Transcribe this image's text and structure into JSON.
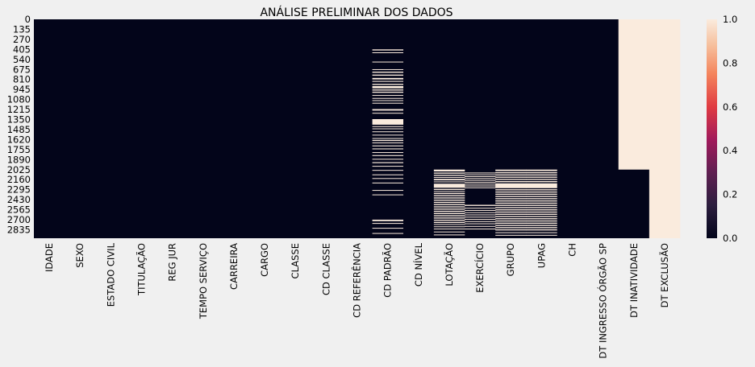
{
  "chart_data": {
    "type": "heatmap",
    "title": "ANÁLISE PRELIMINAR DOS DADOS",
    "xlabel": "",
    "ylabel": "",
    "columns": [
      "IDADE",
      "SEXO",
      "ESTADO CIVIL",
      "TITULAÇÃO",
      "REG JUR",
      "TEMPO SERVIÇO",
      "CARREIRA",
      "CARGO",
      "CLASSE",
      "CD CLASSE",
      "CD REFERÊNCIA",
      "CD PADRÃO",
      "CD NÍVEL",
      "LOTAÇÃO",
      "EXERCÍCIO",
      "GRUPO",
      "UPAG",
      "CH",
      "DT INGRESSO ÓRGÃO SP",
      "DT INATIVIDADE",
      "DT EXCLUSÃO"
    ],
    "row_ticks": [
      "0",
      "135",
      "270",
      "405",
      "540",
      "675",
      "810",
      "945",
      "1080",
      "1215",
      "1350",
      "1485",
      "1620",
      "1755",
      "1890",
      "2025",
      "2160",
      "2295",
      "2430",
      "2565",
      "2700",
      "2835"
    ],
    "n_rows": 2950,
    "colorbar": {
      "min": 0.0,
      "max": 1.0,
      "ticks": [
        "0.0",
        "0.2",
        "0.4",
        "0.6",
        "0.8",
        "1.0"
      ]
    },
    "colors": {
      "low": "#03051a",
      "high": "#faebdd",
      "background": "#f0f0f0"
    },
    "value_range": [
      0,
      1
    ],
    "missing_columns": {
      "CD PADRÃO": [
        [
          405,
          420
        ],
        [
          445,
          455
        ],
        [
          570,
          580
        ],
        [
          672,
          682
        ],
        [
          705,
          720
        ],
        [
          745,
          760
        ],
        [
          790,
          810
        ],
        [
          830,
          842
        ],
        [
          870,
          885
        ],
        [
          900,
          930
        ],
        [
          945,
          960
        ],
        [
          975,
          990
        ],
        [
          1020,
          1030
        ],
        [
          1060,
          1070
        ],
        [
          1090,
          1100
        ],
        [
          1125,
          1135
        ],
        [
          1210,
          1230
        ],
        [
          1260,
          1270
        ],
        [
          1345,
          1420
        ],
        [
          1440,
          1450
        ],
        [
          1470,
          1480
        ],
        [
          1510,
          1520
        ],
        [
          1555,
          1565
        ],
        [
          1600,
          1610
        ],
        [
          1625,
          1640
        ],
        [
          1660,
          1670
        ],
        [
          1700,
          1712
        ],
        [
          1740,
          1752
        ],
        [
          1790,
          1800
        ],
        [
          1830,
          1842
        ],
        [
          1880,
          1890
        ],
        [
          1925,
          1938
        ],
        [
          1975,
          1985
        ],
        [
          2030,
          2040
        ],
        [
          2090,
          2100
        ],
        [
          2140,
          2150
        ],
        [
          2200,
          2210
        ],
        [
          2300,
          2310
        ],
        [
          2360,
          2370
        ],
        [
          2700,
          2720
        ],
        [
          2745,
          2755
        ],
        [
          2810,
          2820
        ],
        [
          2880,
          2890
        ]
      ],
      "LOTAÇÃO": [
        [
          2025,
          2050
        ],
        [
          2065,
          2080
        ],
        [
          2095,
          2110
        ],
        [
          2125,
          2135
        ],
        [
          2150,
          2170
        ],
        [
          2185,
          2195
        ],
        [
          2215,
          2270
        ],
        [
          2285,
          2300
        ],
        [
          2315,
          2325
        ],
        [
          2340,
          2355
        ],
        [
          2370,
          2385
        ],
        [
          2400,
          2415
        ],
        [
          2430,
          2445
        ],
        [
          2460,
          2475
        ],
        [
          2490,
          2505
        ],
        [
          2520,
          2535
        ],
        [
          2550,
          2565
        ],
        [
          2580,
          2595
        ],
        [
          2610,
          2625
        ],
        [
          2640,
          2655
        ],
        [
          2670,
          2685
        ],
        [
          2700,
          2715
        ],
        [
          2730,
          2745
        ],
        [
          2760,
          2770
        ],
        [
          2790,
          2800
        ],
        [
          2820,
          2830
        ],
        [
          2860,
          2870
        ],
        [
          2900,
          2910
        ]
      ],
      "EXERCÍCIO": [
        [
          2065,
          2075
        ],
        [
          2090,
          2100
        ],
        [
          2115,
          2122
        ],
        [
          2140,
          2150
        ],
        [
          2165,
          2175
        ],
        [
          2190,
          2200
        ],
        [
          2215,
          2225
        ],
        [
          2240,
          2250
        ],
        [
          2265,
          2275
        ],
        [
          2500,
          2515
        ],
        [
          2540,
          2550
        ],
        [
          2570,
          2580
        ],
        [
          2600,
          2610
        ],
        [
          2630,
          2640
        ],
        [
          2660,
          2670
        ],
        [
          2690,
          2700
        ],
        [
          2720,
          2730
        ],
        [
          2750,
          2760
        ],
        [
          2785,
          2795
        ],
        [
          2820,
          2830
        ]
      ],
      "GRUPO": [
        [
          2025,
          2045
        ],
        [
          2060,
          2075
        ],
        [
          2090,
          2105
        ],
        [
          2120,
          2135
        ],
        [
          2150,
          2165
        ],
        [
          2180,
          2195
        ],
        [
          2210,
          2275
        ],
        [
          2290,
          2305
        ],
        [
          2320,
          2335
        ],
        [
          2350,
          2365
        ],
        [
          2380,
          2395
        ],
        [
          2410,
          2425
        ],
        [
          2440,
          2455
        ],
        [
          2470,
          2485
        ],
        [
          2500,
          2515
        ],
        [
          2530,
          2545
        ],
        [
          2560,
          2575
        ],
        [
          2590,
          2605
        ],
        [
          2620,
          2635
        ],
        [
          2650,
          2665
        ],
        [
          2680,
          2695
        ],
        [
          2710,
          2725
        ],
        [
          2740,
          2755
        ],
        [
          2770,
          2785
        ],
        [
          2800,
          2815
        ],
        [
          2830,
          2845
        ],
        [
          2870,
          2880
        ],
        [
          2905,
          2915
        ]
      ],
      "UPAG": [
        [
          2025,
          2045
        ],
        [
          2060,
          2075
        ],
        [
          2090,
          2105
        ],
        [
          2120,
          2135
        ],
        [
          2150,
          2165
        ],
        [
          2180,
          2195
        ],
        [
          2210,
          2275
        ],
        [
          2290,
          2305
        ],
        [
          2320,
          2335
        ],
        [
          2350,
          2365
        ],
        [
          2380,
          2395
        ],
        [
          2410,
          2425
        ],
        [
          2440,
          2455
        ],
        [
          2470,
          2485
        ],
        [
          2500,
          2515
        ],
        [
          2530,
          2545
        ],
        [
          2560,
          2575
        ],
        [
          2590,
          2605
        ],
        [
          2620,
          2635
        ],
        [
          2650,
          2665
        ],
        [
          2680,
          2695
        ],
        [
          2710,
          2725
        ],
        [
          2740,
          2755
        ],
        [
          2770,
          2785
        ],
        [
          2800,
          2815
        ],
        [
          2830,
          2845
        ],
        [
          2870,
          2880
        ],
        [
          2905,
          2915
        ]
      ],
      "DT INATIVIDADE": [
        [
          0,
          2025
        ]
      ],
      "DT EXCLUSÃO": [
        [
          0,
          2950
        ]
      ]
    }
  }
}
